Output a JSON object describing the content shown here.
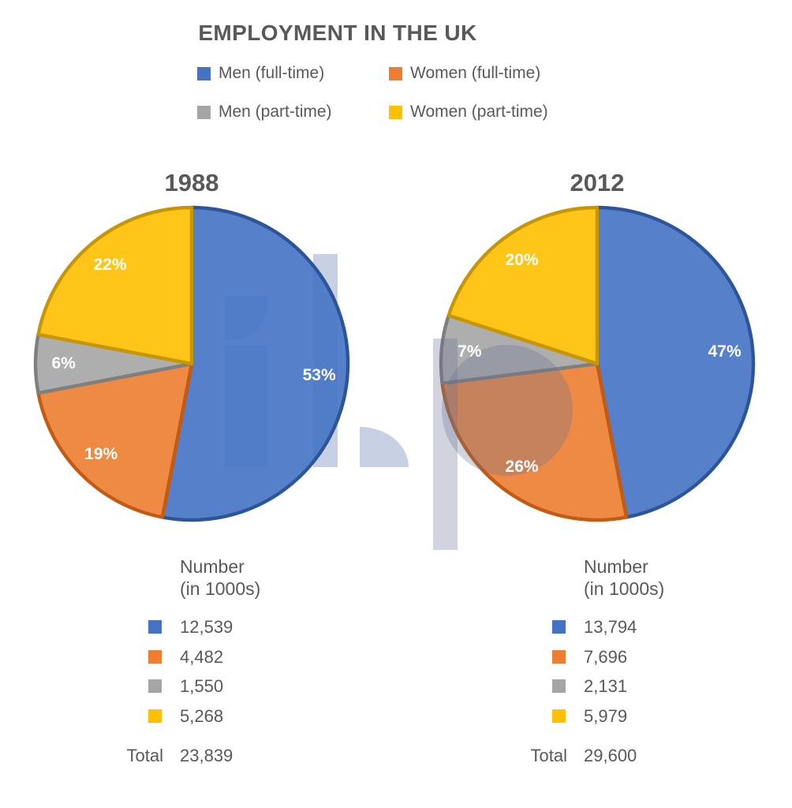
{
  "title": "EMPLOYMENT IN THE UK",
  "text_color": "#595959",
  "watermark_color": "#C8D0E3",
  "series_colors": [
    {
      "name": "Men (full-time)",
      "fill": "#4472C4",
      "stroke": "#2E5597"
    },
    {
      "name": "Women (full-time)",
      "fill": "#ED7D31",
      "stroke": "#C55A11"
    },
    {
      "name": "Men (part-time)",
      "fill": "#A5A5A5",
      "stroke": "#7F7F7F"
    },
    {
      "name": "Women (part-time)",
      "fill": "#FFC000",
      "stroke": "#C79600"
    }
  ],
  "legend": {
    "items": [
      {
        "label": "Men (full-time)"
      },
      {
        "label": "Women (full-time)"
      },
      {
        "label": "Men (part-time)"
      },
      {
        "label": "Women (part-time)"
      }
    ]
  },
  "pies": [
    {
      "year": "1988",
      "percent_labels": [
        "53%",
        "19%",
        "6%",
        "22%"
      ]
    },
    {
      "year": "2012",
      "percent_labels": [
        "47%",
        "26%",
        "7%",
        "20%"
      ]
    }
  ],
  "tables": [
    {
      "header_line1": "Number",
      "header_line2": "(in 1000s)",
      "values": [
        "12,539",
        "4,482",
        "1,550",
        "5,268"
      ],
      "total_label": "Total",
      "total_value": "23,839"
    },
    {
      "header_line1": "Number",
      "header_line2": "(in 1000s)",
      "values": [
        "13,794",
        "7,696",
        "2,131",
        "5,979"
      ],
      "total_label": "Total",
      "total_value": "29,600"
    }
  ],
  "chart_data": [
    {
      "type": "pie",
      "title": "1988",
      "categories": [
        "Men (full-time)",
        "Women (full-time)",
        "Men (part-time)",
        "Women (part-time)"
      ],
      "values": [
        53,
        19,
        6,
        22
      ],
      "unit": "percent",
      "numbers_in_1000s": [
        12539,
        4482,
        1550,
        5268
      ],
      "total_in_1000s": 23839,
      "colors": [
        "#4472C4",
        "#ED7D31",
        "#A5A5A5",
        "#FFC000"
      ],
      "start_angle_deg": 0,
      "direction": "clockwise",
      "label_position": "inside"
    },
    {
      "type": "pie",
      "title": "2012",
      "categories": [
        "Men (full-time)",
        "Women (full-time)",
        "Men (part-time)",
        "Women (part-time)"
      ],
      "values": [
        47,
        26,
        7,
        20
      ],
      "unit": "percent",
      "numbers_in_1000s": [
        13794,
        7696,
        2131,
        5979
      ],
      "total_in_1000s": 29600,
      "colors": [
        "#4472C4",
        "#ED7D31",
        "#A5A5A5",
        "#FFC000"
      ],
      "start_angle_deg": 0,
      "direction": "clockwise",
      "label_position": "inside"
    }
  ]
}
